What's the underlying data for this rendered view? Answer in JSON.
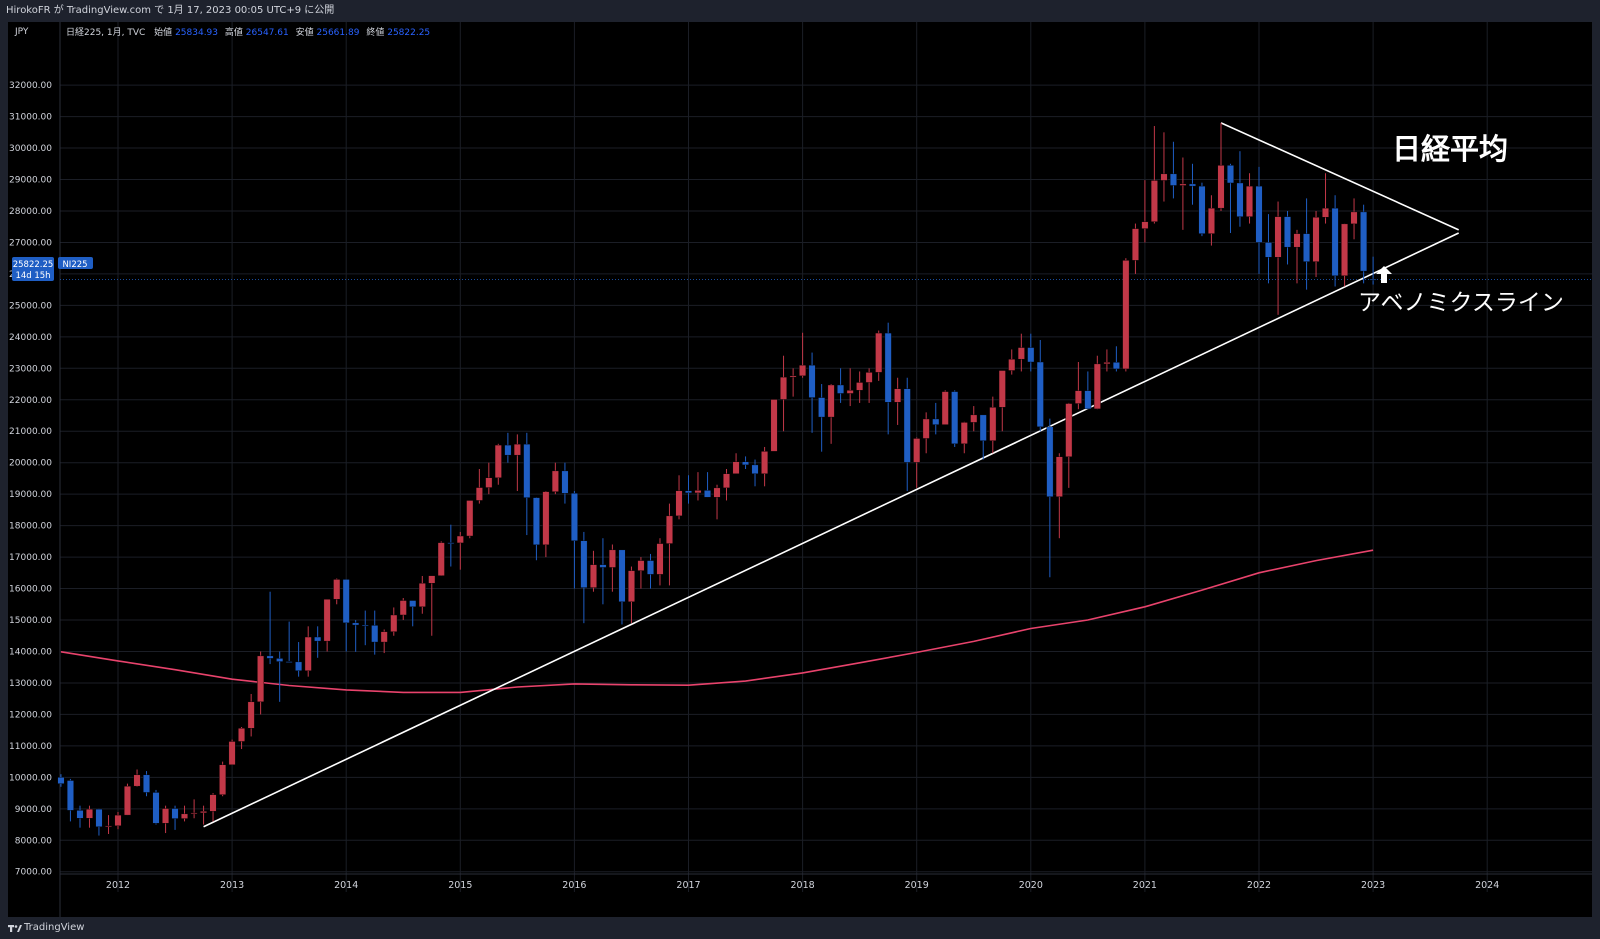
{
  "header": {
    "publish_info": "HirokoFR が TradingView.com で 1月 17, 2023 00:05 UTC+9 に公開"
  },
  "footer": {
    "brand": "TradingView"
  },
  "legend": {
    "symbol": "日経225, 1月, TVC",
    "open_label": "始値",
    "open": "25834.93",
    "high_label": "高値",
    "high": "26547.61",
    "low_label": "安値",
    "low": "25661.89",
    "close_label": "終値",
    "close": "25822.25"
  },
  "price_badge": {
    "price": "25822.25",
    "symbol": "NI225",
    "countdown": "14d 15h"
  },
  "annotations": {
    "title": "日経平均",
    "line_label": "アベノミクスライン"
  },
  "colors": {
    "up": "#c23848",
    "down": "#1f5ec4",
    "ma": "#e8436c",
    "trendline": "#ffffff",
    "background": "#000000"
  },
  "chart_data": {
    "type": "candlestick",
    "currency": "JPY",
    "ylim": [
      6500,
      33000
    ],
    "y_ticks": [
      7000,
      8000,
      9000,
      10000,
      11000,
      12000,
      13000,
      14000,
      15000,
      16000,
      17000,
      18000,
      19000,
      20000,
      21000,
      22000,
      23000,
      24000,
      25000,
      26000,
      27000,
      28000,
      29000,
      30000,
      31000,
      32000
    ],
    "x_ticks": [
      "2012",
      "2013",
      "2014",
      "2015",
      "2016",
      "2017",
      "2018",
      "2019",
      "2020",
      "2021",
      "2022",
      "2023",
      "2024"
    ],
    "xlim": [
      2011.5,
      2024.5
    ],
    "candles": [
      {
        "t": 2011.5,
        "o": 10000,
        "h": 10100,
        "l": 9700,
        "c": 9800
      },
      {
        "t": 2011.583,
        "o": 9900,
        "h": 9950,
        "l": 8600,
        "c": 8950
      },
      {
        "t": 2011.667,
        "o": 8950,
        "h": 9100,
        "l": 8400,
        "c": 8700
      },
      {
        "t": 2011.75,
        "o": 8700,
        "h": 9100,
        "l": 8400,
        "c": 8990
      },
      {
        "t": 2011.833,
        "o": 8990,
        "h": 9000,
        "l": 8150,
        "c": 8430
      },
      {
        "t": 2011.917,
        "o": 8430,
        "h": 8800,
        "l": 8200,
        "c": 8460
      },
      {
        "t": 2012.0,
        "o": 8460,
        "h": 8900,
        "l": 8350,
        "c": 8800
      },
      {
        "t": 2012.083,
        "o": 8800,
        "h": 9800,
        "l": 8800,
        "c": 9720
      },
      {
        "t": 2012.167,
        "o": 9720,
        "h": 10250,
        "l": 9700,
        "c": 10080
      },
      {
        "t": 2012.25,
        "o": 10080,
        "h": 10200,
        "l": 9400,
        "c": 9520
      },
      {
        "t": 2012.333,
        "o": 9520,
        "h": 9600,
        "l": 8500,
        "c": 8540
      },
      {
        "t": 2012.417,
        "o": 8540,
        "h": 9100,
        "l": 8230,
        "c": 9010
      },
      {
        "t": 2012.5,
        "o": 9010,
        "h": 9100,
        "l": 8330,
        "c": 8690
      },
      {
        "t": 2012.583,
        "o": 8690,
        "h": 9100,
        "l": 8600,
        "c": 8840
      },
      {
        "t": 2012.667,
        "o": 8840,
        "h": 9300,
        "l": 8700,
        "c": 8870
      },
      {
        "t": 2012.75,
        "o": 8870,
        "h": 9100,
        "l": 8500,
        "c": 8920
      },
      {
        "t": 2012.833,
        "o": 8920,
        "h": 9500,
        "l": 8600,
        "c": 9450
      },
      {
        "t": 2012.917,
        "o": 9450,
        "h": 10500,
        "l": 9400,
        "c": 10400
      },
      {
        "t": 2013.0,
        "o": 10400,
        "h": 11200,
        "l": 10400,
        "c": 11140
      },
      {
        "t": 2013.083,
        "o": 11140,
        "h": 11600,
        "l": 10900,
        "c": 11560
      },
      {
        "t": 2013.167,
        "o": 11560,
        "h": 12650,
        "l": 11300,
        "c": 12400
      },
      {
        "t": 2013.25,
        "o": 12400,
        "h": 14000,
        "l": 12000,
        "c": 13860
      },
      {
        "t": 2013.333,
        "o": 13860,
        "h": 15900,
        "l": 13600,
        "c": 13780
      },
      {
        "t": 2013.417,
        "o": 13780,
        "h": 14000,
        "l": 12400,
        "c": 13680
      },
      {
        "t": 2013.5,
        "o": 13680,
        "h": 14950,
        "l": 13700,
        "c": 13670
      },
      {
        "t": 2013.583,
        "o": 13670,
        "h": 14300,
        "l": 13200,
        "c": 13390
      },
      {
        "t": 2013.667,
        "o": 13390,
        "h": 14800,
        "l": 13200,
        "c": 14460
      },
      {
        "t": 2013.75,
        "o": 14460,
        "h": 14800,
        "l": 13800,
        "c": 14330
      },
      {
        "t": 2013.833,
        "o": 14330,
        "h": 15600,
        "l": 14000,
        "c": 15660
      },
      {
        "t": 2013.917,
        "o": 15660,
        "h": 16320,
        "l": 15500,
        "c": 16290
      },
      {
        "t": 2014.0,
        "o": 16290,
        "h": 16300,
        "l": 14000,
        "c": 14910
      },
      {
        "t": 2014.083,
        "o": 14910,
        "h": 15000,
        "l": 13990,
        "c": 14840
      },
      {
        "t": 2014.167,
        "o": 14840,
        "h": 15300,
        "l": 14200,
        "c": 14830
      },
      {
        "t": 2014.25,
        "o": 14830,
        "h": 15300,
        "l": 13900,
        "c": 14300
      },
      {
        "t": 2014.333,
        "o": 14300,
        "h": 14700,
        "l": 13950,
        "c": 14630
      },
      {
        "t": 2014.417,
        "o": 14630,
        "h": 15400,
        "l": 14500,
        "c": 15160
      },
      {
        "t": 2014.5,
        "o": 15160,
        "h": 15700,
        "l": 15000,
        "c": 15620
      },
      {
        "t": 2014.583,
        "o": 15620,
        "h": 15600,
        "l": 14800,
        "c": 15420
      },
      {
        "t": 2014.667,
        "o": 15420,
        "h": 16400,
        "l": 15200,
        "c": 16170
      },
      {
        "t": 2014.75,
        "o": 16170,
        "h": 16400,
        "l": 14500,
        "c": 16410
      },
      {
        "t": 2014.833,
        "o": 16410,
        "h": 17500,
        "l": 16400,
        "c": 17460
      },
      {
        "t": 2014.917,
        "o": 17460,
        "h": 18030,
        "l": 16700,
        "c": 17450
      },
      {
        "t": 2015.0,
        "o": 17450,
        "h": 17800,
        "l": 16600,
        "c": 17670
      },
      {
        "t": 2015.083,
        "o": 17670,
        "h": 18800,
        "l": 17600,
        "c": 18800
      },
      {
        "t": 2015.167,
        "o": 18800,
        "h": 19800,
        "l": 18700,
        "c": 19210
      },
      {
        "t": 2015.25,
        "o": 19210,
        "h": 20000,
        "l": 19000,
        "c": 19520
      },
      {
        "t": 2015.333,
        "o": 19520,
        "h": 20600,
        "l": 19300,
        "c": 20560
      },
      {
        "t": 2015.417,
        "o": 20560,
        "h": 20950,
        "l": 20000,
        "c": 20240
      },
      {
        "t": 2015.5,
        "o": 20240,
        "h": 20900,
        "l": 19100,
        "c": 20590
      },
      {
        "t": 2015.583,
        "o": 20590,
        "h": 20950,
        "l": 17700,
        "c": 18890
      },
      {
        "t": 2015.667,
        "o": 18890,
        "h": 18900,
        "l": 16900,
        "c": 17390
      },
      {
        "t": 2015.75,
        "o": 17390,
        "h": 19100,
        "l": 17000,
        "c": 19080
      },
      {
        "t": 2015.833,
        "o": 19080,
        "h": 20000,
        "l": 19000,
        "c": 19740
      },
      {
        "t": 2015.917,
        "o": 19740,
        "h": 20000,
        "l": 18700,
        "c": 19030
      },
      {
        "t": 2016.0,
        "o": 19030,
        "h": 19100,
        "l": 16000,
        "c": 17520
      },
      {
        "t": 2016.083,
        "o": 17520,
        "h": 17800,
        "l": 14900,
        "c": 16030
      },
      {
        "t": 2016.167,
        "o": 16030,
        "h": 17200,
        "l": 15900,
        "c": 16760
      },
      {
        "t": 2016.25,
        "o": 16760,
        "h": 17600,
        "l": 15500,
        "c": 16670
      },
      {
        "t": 2016.333,
        "o": 16670,
        "h": 17400,
        "l": 15900,
        "c": 17230
      },
      {
        "t": 2016.417,
        "o": 17230,
        "h": 17200,
        "l": 14860,
        "c": 15580
      },
      {
        "t": 2016.5,
        "o": 15580,
        "h": 16700,
        "l": 14900,
        "c": 16570
      },
      {
        "t": 2016.583,
        "o": 16570,
        "h": 17000,
        "l": 16000,
        "c": 16890
      },
      {
        "t": 2016.667,
        "o": 16890,
        "h": 17100,
        "l": 16000,
        "c": 16450
      },
      {
        "t": 2016.75,
        "o": 16450,
        "h": 17600,
        "l": 16100,
        "c": 17430
      },
      {
        "t": 2016.833,
        "o": 17430,
        "h": 18700,
        "l": 16100,
        "c": 18310
      },
      {
        "t": 2016.917,
        "o": 18310,
        "h": 19600,
        "l": 18200,
        "c": 19110
      },
      {
        "t": 2017.0,
        "o": 19110,
        "h": 19600,
        "l": 18700,
        "c": 19040
      },
      {
        "t": 2017.083,
        "o": 19040,
        "h": 19700,
        "l": 18800,
        "c": 19120
      },
      {
        "t": 2017.167,
        "o": 19120,
        "h": 19700,
        "l": 18900,
        "c": 18900
      },
      {
        "t": 2017.25,
        "o": 18900,
        "h": 19300,
        "l": 18200,
        "c": 19200
      },
      {
        "t": 2017.333,
        "o": 19200,
        "h": 19800,
        "l": 18800,
        "c": 19650
      },
      {
        "t": 2017.417,
        "o": 19650,
        "h": 20300,
        "l": 19700,
        "c": 20030
      },
      {
        "t": 2017.5,
        "o": 20030,
        "h": 20200,
        "l": 19800,
        "c": 19930
      },
      {
        "t": 2017.583,
        "o": 19930,
        "h": 20100,
        "l": 19250,
        "c": 19650
      },
      {
        "t": 2017.667,
        "o": 19650,
        "h": 20500,
        "l": 19250,
        "c": 20360
      },
      {
        "t": 2017.75,
        "o": 20360,
        "h": 22000,
        "l": 20400,
        "c": 22010
      },
      {
        "t": 2017.833,
        "o": 22010,
        "h": 23400,
        "l": 21000,
        "c": 22720
      },
      {
        "t": 2017.917,
        "o": 22720,
        "h": 23000,
        "l": 22100,
        "c": 22760
      },
      {
        "t": 2018.0,
        "o": 22760,
        "h": 24130,
        "l": 22700,
        "c": 23100
      },
      {
        "t": 2018.083,
        "o": 23100,
        "h": 23500,
        "l": 20950,
        "c": 22070
      },
      {
        "t": 2018.167,
        "o": 22070,
        "h": 22500,
        "l": 20350,
        "c": 21450
      },
      {
        "t": 2018.25,
        "o": 21450,
        "h": 22500,
        "l": 20600,
        "c": 22470
      },
      {
        "t": 2018.333,
        "o": 22470,
        "h": 23000,
        "l": 21900,
        "c": 22200
      },
      {
        "t": 2018.417,
        "o": 22200,
        "h": 23000,
        "l": 21800,
        "c": 22300
      },
      {
        "t": 2018.5,
        "o": 22300,
        "h": 22900,
        "l": 21900,
        "c": 22550
      },
      {
        "t": 2018.583,
        "o": 22550,
        "h": 23000,
        "l": 21900,
        "c": 22870
      },
      {
        "t": 2018.667,
        "o": 22870,
        "h": 24200,
        "l": 22600,
        "c": 24120
      },
      {
        "t": 2018.75,
        "o": 24120,
        "h": 24450,
        "l": 20900,
        "c": 21920
      },
      {
        "t": 2018.833,
        "o": 21920,
        "h": 22700,
        "l": 21200,
        "c": 22350
      },
      {
        "t": 2018.917,
        "o": 22350,
        "h": 22700,
        "l": 19100,
        "c": 20010
      },
      {
        "t": 2019.0,
        "o": 20010,
        "h": 20800,
        "l": 19200,
        "c": 20770
      },
      {
        "t": 2019.083,
        "o": 20770,
        "h": 21600,
        "l": 20300,
        "c": 21390
      },
      {
        "t": 2019.167,
        "o": 21390,
        "h": 21900,
        "l": 20900,
        "c": 21210
      },
      {
        "t": 2019.25,
        "o": 21210,
        "h": 22300,
        "l": 21300,
        "c": 22260
      },
      {
        "t": 2019.333,
        "o": 22260,
        "h": 22300,
        "l": 20500,
        "c": 20600
      },
      {
        "t": 2019.417,
        "o": 20600,
        "h": 21300,
        "l": 20300,
        "c": 21280
      },
      {
        "t": 2019.5,
        "o": 21280,
        "h": 21800,
        "l": 21000,
        "c": 21520
      },
      {
        "t": 2019.583,
        "o": 21520,
        "h": 21500,
        "l": 20100,
        "c": 20700
      },
      {
        "t": 2019.667,
        "o": 20700,
        "h": 22100,
        "l": 20300,
        "c": 21760
      },
      {
        "t": 2019.75,
        "o": 21760,
        "h": 22900,
        "l": 21000,
        "c": 22930
      },
      {
        "t": 2019.833,
        "o": 22930,
        "h": 23600,
        "l": 22800,
        "c": 23290
      },
      {
        "t": 2019.917,
        "o": 23290,
        "h": 24100,
        "l": 22900,
        "c": 23660
      },
      {
        "t": 2020.0,
        "o": 23660,
        "h": 24100,
        "l": 22900,
        "c": 23200
      },
      {
        "t": 2020.083,
        "o": 23200,
        "h": 23900,
        "l": 21000,
        "c": 21140
      },
      {
        "t": 2020.167,
        "o": 21140,
        "h": 21400,
        "l": 16360,
        "c": 18920
      },
      {
        "t": 2020.25,
        "o": 18920,
        "h": 20300,
        "l": 17600,
        "c": 20190
      },
      {
        "t": 2020.333,
        "o": 20190,
        "h": 21900,
        "l": 19200,
        "c": 21880
      },
      {
        "t": 2020.417,
        "o": 21880,
        "h": 23200,
        "l": 21700,
        "c": 22290
      },
      {
        "t": 2020.5,
        "o": 22290,
        "h": 22900,
        "l": 21700,
        "c": 21710
      },
      {
        "t": 2020.583,
        "o": 21710,
        "h": 23400,
        "l": 21700,
        "c": 23140
      },
      {
        "t": 2020.667,
        "o": 23140,
        "h": 23600,
        "l": 22900,
        "c": 23190
      },
      {
        "t": 2020.75,
        "o": 23190,
        "h": 23700,
        "l": 22900,
        "c": 22980
      },
      {
        "t": 2020.833,
        "o": 22980,
        "h": 26500,
        "l": 22900,
        "c": 26430
      },
      {
        "t": 2020.917,
        "o": 26430,
        "h": 27600,
        "l": 26000,
        "c": 27440
      },
      {
        "t": 2021.0,
        "o": 27440,
        "h": 28980,
        "l": 27000,
        "c": 27660
      },
      {
        "t": 2021.083,
        "o": 27660,
        "h": 30700,
        "l": 27600,
        "c": 28970
      },
      {
        "t": 2021.167,
        "o": 28970,
        "h": 30500,
        "l": 28300,
        "c": 29180
      },
      {
        "t": 2021.25,
        "o": 29180,
        "h": 30200,
        "l": 28400,
        "c": 28810
      },
      {
        "t": 2021.333,
        "o": 28810,
        "h": 29700,
        "l": 27400,
        "c": 28860
      },
      {
        "t": 2021.417,
        "o": 28860,
        "h": 29500,
        "l": 28200,
        "c": 28790
      },
      {
        "t": 2021.5,
        "o": 28790,
        "h": 28900,
        "l": 27200,
        "c": 27280
      },
      {
        "t": 2021.583,
        "o": 27280,
        "h": 28500,
        "l": 26900,
        "c": 28090
      },
      {
        "t": 2021.667,
        "o": 28090,
        "h": 30800,
        "l": 28000,
        "c": 29450
      },
      {
        "t": 2021.75,
        "o": 29450,
        "h": 29500,
        "l": 27300,
        "c": 28890
      },
      {
        "t": 2021.833,
        "o": 28890,
        "h": 29900,
        "l": 27500,
        "c": 27820
      },
      {
        "t": 2021.917,
        "o": 27820,
        "h": 29200,
        "l": 27600,
        "c": 28790
      },
      {
        "t": 2022.0,
        "o": 28790,
        "h": 29400,
        "l": 26000,
        "c": 27000
      },
      {
        "t": 2022.083,
        "o": 27000,
        "h": 27900,
        "l": 25700,
        "c": 26530
      },
      {
        "t": 2022.167,
        "o": 26530,
        "h": 28300,
        "l": 24700,
        "c": 27820
      },
      {
        "t": 2022.25,
        "o": 27820,
        "h": 28000,
        "l": 26300,
        "c": 26850
      },
      {
        "t": 2022.333,
        "o": 26850,
        "h": 27400,
        "l": 25700,
        "c": 27280
      },
      {
        "t": 2022.417,
        "o": 27280,
        "h": 28400,
        "l": 25500,
        "c": 26390
      },
      {
        "t": 2022.5,
        "o": 26390,
        "h": 28000,
        "l": 25900,
        "c": 27800
      },
      {
        "t": 2022.583,
        "o": 27800,
        "h": 29200,
        "l": 27600,
        "c": 28090
      },
      {
        "t": 2022.667,
        "o": 28090,
        "h": 28500,
        "l": 25600,
        "c": 25940
      },
      {
        "t": 2022.75,
        "o": 25940,
        "h": 27600,
        "l": 25600,
        "c": 27590
      },
      {
        "t": 2022.833,
        "o": 27590,
        "h": 28400,
        "l": 27100,
        "c": 27970
      },
      {
        "t": 2022.917,
        "o": 27970,
        "h": 28200,
        "l": 25700,
        "c": 26090
      },
      {
        "t": 2023.0,
        "o": 25834.93,
        "h": 26547.61,
        "l": 25661.89,
        "c": 25822.25
      }
    ],
    "moving_average": [
      {
        "t": 2011.5,
        "v": 13990
      },
      {
        "t": 2012.0,
        "v": 13700
      },
      {
        "t": 2012.5,
        "v": 13420
      },
      {
        "t": 2013.0,
        "v": 13120
      },
      {
        "t": 2013.5,
        "v": 12920
      },
      {
        "t": 2014.0,
        "v": 12780
      },
      {
        "t": 2014.5,
        "v": 12700
      },
      {
        "t": 2015.0,
        "v": 12700
      },
      {
        "t": 2015.5,
        "v": 12870
      },
      {
        "t": 2016.0,
        "v": 12970
      },
      {
        "t": 2016.5,
        "v": 12940
      },
      {
        "t": 2017.0,
        "v": 12930
      },
      {
        "t": 2017.5,
        "v": 13060
      },
      {
        "t": 2018.0,
        "v": 13320
      },
      {
        "t": 2018.5,
        "v": 13640
      },
      {
        "t": 2019.0,
        "v": 13970
      },
      {
        "t": 2019.5,
        "v": 14320
      },
      {
        "t": 2020.0,
        "v": 14730
      },
      {
        "t": 2020.5,
        "v": 15000
      },
      {
        "t": 2021.0,
        "v": 15420
      },
      {
        "t": 2021.5,
        "v": 15950
      },
      {
        "t": 2022.0,
        "v": 16500
      },
      {
        "t": 2022.5,
        "v": 16890
      },
      {
        "t": 2023.0,
        "v": 17220
      }
    ],
    "trendlines": [
      {
        "name": "support",
        "from": {
          "t": 2012.75,
          "v": 8430
        },
        "to": {
          "t": 2023.75,
          "v": 27300
        }
      },
      {
        "name": "resistance",
        "from": {
          "t": 2021.667,
          "v": 30800
        },
        "to": {
          "t": 2023.75,
          "v": 27400
        }
      }
    ]
  }
}
